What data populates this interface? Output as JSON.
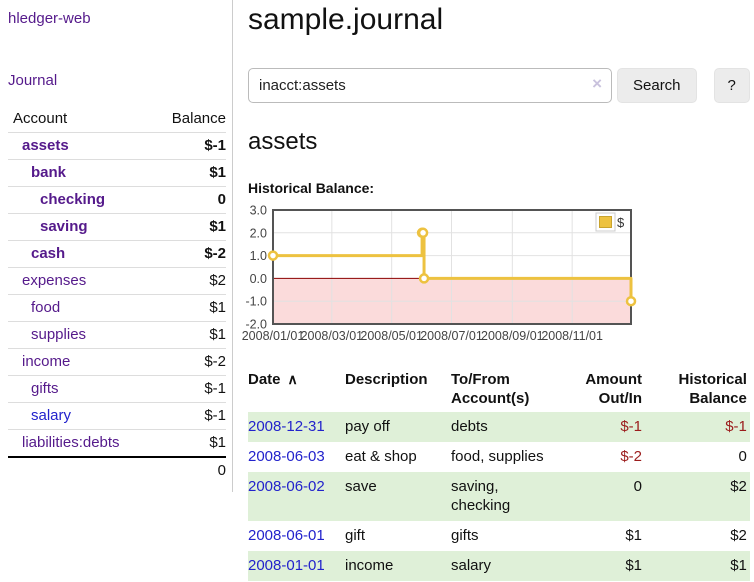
{
  "sidebar": {
    "app_title": "hledger-web",
    "nav": {
      "journal": "Journal"
    },
    "accounts_table": {
      "headers": {
        "account": "Account",
        "balance": "Balance"
      },
      "rows": [
        {
          "name": "assets",
          "level": 0,
          "bold": true,
          "balance": "$-1",
          "balance_class": "neg-strong"
        },
        {
          "name": "bank",
          "level": 1,
          "bold": true,
          "balance": "$1",
          "balance_class": ""
        },
        {
          "name": "checking",
          "level": 2,
          "bold": true,
          "balance": "0",
          "balance_class": ""
        },
        {
          "name": "saving",
          "level": 2,
          "bold": true,
          "balance": "$1",
          "balance_class": ""
        },
        {
          "name": "cash",
          "level": 1,
          "bold": true,
          "balance": "$-2",
          "balance_class": "neg-strong"
        },
        {
          "name": "expenses",
          "level": 0,
          "bold": false,
          "balance": "$2",
          "balance_class": ""
        },
        {
          "name": "food",
          "level": 1,
          "bold": false,
          "balance": "$1",
          "balance_class": ""
        },
        {
          "name": "supplies",
          "level": 1,
          "bold": false,
          "balance": "$1",
          "balance_class": ""
        },
        {
          "name": "income",
          "level": 0,
          "bold": false,
          "balance": "$-2",
          "balance_class": "neg-muted"
        },
        {
          "name": "gifts",
          "level": 1,
          "bold": false,
          "balance": "$-1",
          "balance_class": "neg-muted"
        },
        {
          "name": "salary",
          "level": 1,
          "bold": false,
          "balance": "$-1",
          "balance_class": "neg-muted",
          "link_color": "blue"
        },
        {
          "name": "liabilities:debts",
          "level": 0,
          "bold": false,
          "balance": "$1",
          "balance_class": ""
        }
      ],
      "total": "0"
    }
  },
  "header": {
    "title": "sample.journal"
  },
  "search": {
    "value": "inacct:assets",
    "clear_icon": "×",
    "button_label": "Search",
    "help_label": "?"
  },
  "account_page": {
    "heading": "assets",
    "chart_label": "Historical Balance:"
  },
  "chart_data": {
    "type": "line",
    "title": "Historical Balance",
    "steps": true,
    "series": [
      {
        "name": "$",
        "color": "#edc240",
        "points": [
          {
            "date": "2008-01-01",
            "day": 0,
            "value": 1
          },
          {
            "date": "2008-06-01",
            "day": 152,
            "value": 2
          },
          {
            "date": "2008-06-02",
            "day": 153,
            "value": 2
          },
          {
            "date": "2008-06-03",
            "day": 154,
            "value": 0
          },
          {
            "date": "2008-12-31",
            "day": 365,
            "value": -1
          }
        ]
      }
    ],
    "x_ticks": [
      {
        "label": "2008/01/01",
        "day": 0
      },
      {
        "label": "2008/03/01",
        "day": 60
      },
      {
        "label": "2008/05/01",
        "day": 121
      },
      {
        "label": "2008/07/01",
        "day": 182
      },
      {
        "label": "2008/09/01",
        "day": 244
      },
      {
        "label": "2008/11/01",
        "day": 305
      }
    ],
    "x_range_days": [
      0,
      365
    ],
    "y_ticks": [
      "3.0",
      "2.0",
      "1.0",
      "0.0",
      "-1.0",
      "-2.0"
    ],
    "y_range": [
      -2,
      3
    ],
    "legend": {
      "label": "$",
      "position": "top-right"
    },
    "grid": true,
    "colors": {
      "border": "#545454",
      "gridline": "#e2e2e2",
      "negative_region": "#fbdbdb",
      "zero_line": "#8b0000",
      "tick_label": "#444444"
    }
  },
  "register_table": {
    "headers": [
      "Date",
      "Description",
      "To/From Account(s)",
      "Amount Out/In",
      "Historical Balance"
    ],
    "sort_icon": "∧",
    "rows": [
      {
        "date": "2008-12-31",
        "description": "pay off",
        "accounts": "debts",
        "amount": "$-1",
        "amount_neg": true,
        "balance": "$-1",
        "balance_neg": true
      },
      {
        "date": "2008-06-03",
        "description": "eat & shop",
        "accounts": "food, supplies",
        "amount": "$-2",
        "amount_neg": true,
        "balance": "0",
        "balance_neg": false
      },
      {
        "date": "2008-06-02",
        "description": "save",
        "accounts": "saving, checking",
        "amount": "0",
        "amount_neg": false,
        "balance": "$2",
        "balance_neg": false
      },
      {
        "date": "2008-06-01",
        "description": "gift",
        "accounts": "gifts",
        "amount": "$1",
        "amount_neg": false,
        "balance": "$2",
        "balance_neg": false
      },
      {
        "date": "2008-01-01",
        "description": "income",
        "accounts": "salary",
        "amount": "$1",
        "amount_neg": false,
        "balance": "$1",
        "balance_neg": false
      }
    ]
  }
}
